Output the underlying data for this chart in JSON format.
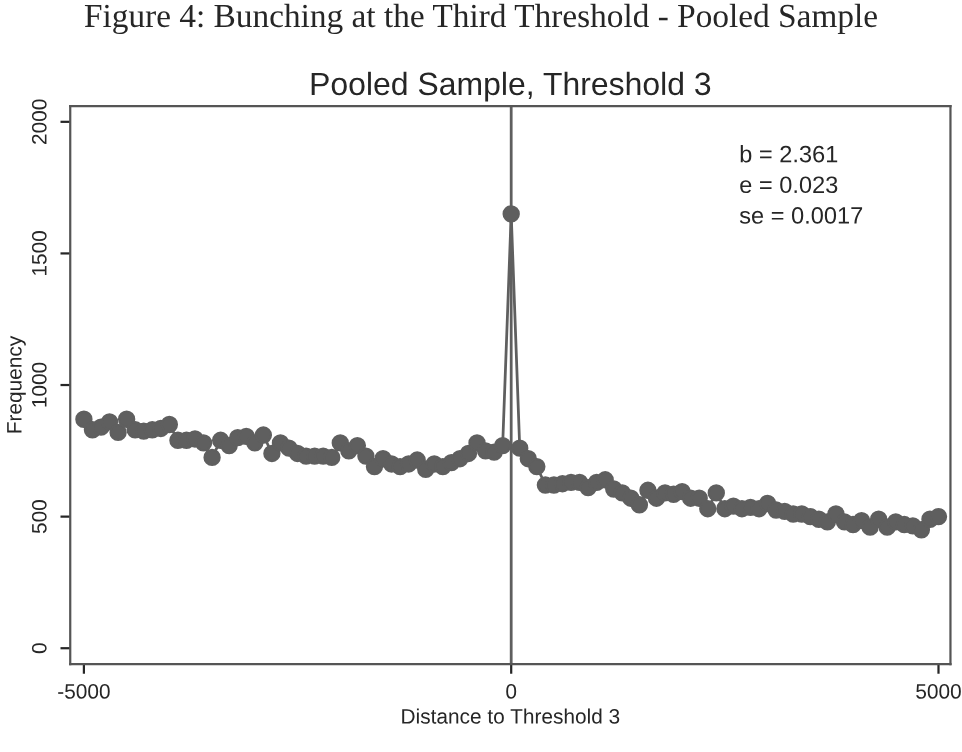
{
  "chart_data": {
    "type": "line",
    "title": "Pooled Sample, Threshold 3",
    "xlabel": "Distance to Threshold 3",
    "ylabel": "Frequency",
    "annotations": [
      "Figure 4: Bunching at the Third Threshold - Pooled Sample",
      "b = 2.361",
      "e = 0.023",
      "se = 0.0017"
    ],
    "x": [
      -5000,
      -4900,
      -4800,
      -4700,
      -4600,
      -4500,
      -4400,
      -4300,
      -4200,
      -4100,
      -4000,
      -3900,
      -3800,
      -3700,
      -3600,
      -3500,
      -3400,
      -3300,
      -3200,
      -3100,
      -3000,
      -2900,
      -2800,
      -2700,
      -2600,
      -2500,
      -2400,
      -2300,
      -2200,
      -2100,
      -2000,
      -1900,
      -1800,
      -1700,
      -1600,
      -1500,
      -1400,
      -1300,
      -1200,
      -1100,
      -1000,
      -900,
      -800,
      -700,
      -600,
      -500,
      -400,
      -300,
      -200,
      -100,
      0,
      100,
      200,
      300,
      400,
      500,
      600,
      700,
      800,
      900,
      1000,
      1100,
      1200,
      1300,
      1400,
      1500,
      1600,
      1700,
      1800,
      1900,
      2000,
      2100,
      2200,
      2300,
      2400,
      2500,
      2600,
      2700,
      2800,
      2900,
      3000,
      3100,
      3200,
      3300,
      3400,
      3500,
      3600,
      3700,
      3800,
      3900,
      4000,
      4100,
      4200,
      4300,
      4400,
      4500,
      4600,
      4700,
      4800,
      4900,
      5000
    ],
    "series": [
      {
        "color": "#5f5f5f",
        "values": [
          870,
          830,
          840,
          860,
          820,
          870,
          830,
          825,
          830,
          835,
          850,
          790,
          790,
          795,
          780,
          725,
          790,
          770,
          800,
          805,
          780,
          810,
          740,
          780,
          760,
          740,
          730,
          730,
          730,
          725,
          780,
          750,
          770,
          730,
          690,
          720,
          700,
          690,
          700,
          715,
          680,
          700,
          690,
          705,
          720,
          740,
          780,
          750,
          745,
          770,
          1650,
          760,
          720,
          690,
          620,
          620,
          625,
          630,
          630,
          610,
          630,
          640,
          605,
          590,
          570,
          545,
          600,
          570,
          590,
          585,
          595,
          570,
          570,
          530,
          590,
          530,
          540,
          530,
          535,
          530,
          550,
          525,
          520,
          510,
          510,
          500,
          490,
          480,
          510,
          480,
          470,
          485,
          460,
          490,
          460,
          480,
          470,
          465,
          450,
          490,
          500
        ]
      }
    ],
    "xlim": [
      -5160,
      5140
    ],
    "ylim": [
      -60,
      2060
    ],
    "xticks": [
      -5000,
      0,
      5000
    ],
    "yticks": [
      0,
      500,
      1000,
      1500,
      2000
    ],
    "ref_lines": [
      {
        "axis": "x",
        "value": 0,
        "color": "#5f5f5f"
      }
    ],
    "marker": "circle",
    "line_style": "solid",
    "grid": false,
    "legend": false
  }
}
